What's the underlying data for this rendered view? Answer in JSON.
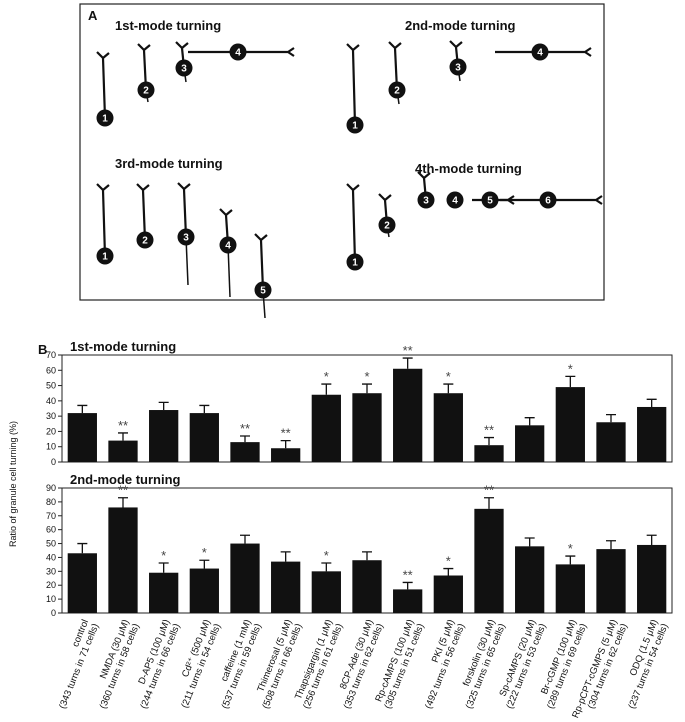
{
  "panel_a": {
    "label": "A",
    "modes": [
      {
        "title": "1st-mode turning",
        "cells": [
          "1",
          "2",
          "3",
          "4"
        ]
      },
      {
        "title": "2nd-mode turning",
        "cells": [
          "1",
          "2",
          "3",
          "4"
        ]
      },
      {
        "title": "3rd-mode turning",
        "cells": [
          "1",
          "2",
          "3",
          "4",
          "5"
        ]
      },
      {
        "title": "4th-mode turning",
        "cells": [
          "3",
          "4",
          "5",
          "6",
          "1",
          "2"
        ]
      }
    ]
  },
  "panel_b_label": "B",
  "chart_data": [
    {
      "type": "bar",
      "title": "1st-mode turning",
      "ylabel": "Ratio of granule cell turning (%)",
      "values": [
        32,
        14,
        34,
        32,
        13,
        9,
        44,
        45,
        61,
        45,
        11,
        24,
        49,
        26,
        36
      ],
      "errors": [
        5,
        5,
        5,
        5,
        4,
        5,
        7,
        6,
        7,
        6,
        5,
        5,
        7,
        5,
        5
      ],
      "significance": [
        null,
        "**",
        null,
        null,
        "**",
        "**",
        "*",
        "*",
        "**",
        "*",
        "**",
        null,
        "*",
        null,
        null
      ],
      "color": "#111111",
      "ylim": [
        0,
        70
      ],
      "yticks": [
        0,
        10,
        20,
        30,
        40,
        50,
        60,
        70
      ]
    },
    {
      "type": "bar",
      "title": "2nd-mode turning",
      "categories": [
        "control",
        "NMDA (30 μM)",
        "D-AP5 (100 μM)",
        "Cd²⁺ (500 μM)",
        "caffeine (1 mM)",
        "Thimerosal (5 μM)",
        "Thapsigargin (1 μM)",
        "8CP-Ade (30 μM)",
        "Rp-cAMPS (100 μM)",
        "PKI (5 μM)",
        "forskolin (30 μM)",
        "Sp-cAMPS (20 μM)",
        "Br-cGMP (100 μM)",
        "Rp-pCPT-cGMPS (5 μM)",
        "ODQ (1.5 μM)"
      ],
      "category_details": [
        "(343 turns in 71 cells)",
        "(360 turns in 58 cells)",
        "(244 turns in 66 cells)",
        "(211 turns in 54 cells)",
        "(537 turns in 59 cells)",
        "(508 turns in 66 cells)",
        "(256 turns in 61 cells)",
        "(353 turns in 62 cells)",
        "(305 turns in 51 cells)",
        "(492 turns in 56 cells)",
        "(325 turns in 65 cells)",
        "(222 turns in 53 cells)",
        "(289 turns in 69 cells)",
        "(304 turns in 62 cells)",
        "(237 turns in 54 cells)"
      ],
      "values": [
        43,
        76,
        29,
        32,
        50,
        37,
        30,
        38,
        17,
        27,
        75,
        48,
        35,
        46,
        49
      ],
      "errors": [
        7,
        7,
        7,
        6,
        6,
        7,
        6,
        6,
        5,
        5,
        8,
        6,
        6,
        6,
        7
      ],
      "significance": [
        null,
        "**",
        "*",
        "*",
        null,
        null,
        "*",
        null,
        "**",
        "*",
        "**",
        null,
        "*",
        null,
        null
      ],
      "color": "#111111",
      "ylim": [
        0,
        90
      ],
      "yticks": [
        0,
        10,
        20,
        30,
        40,
        50,
        60,
        70,
        80,
        90
      ]
    }
  ]
}
